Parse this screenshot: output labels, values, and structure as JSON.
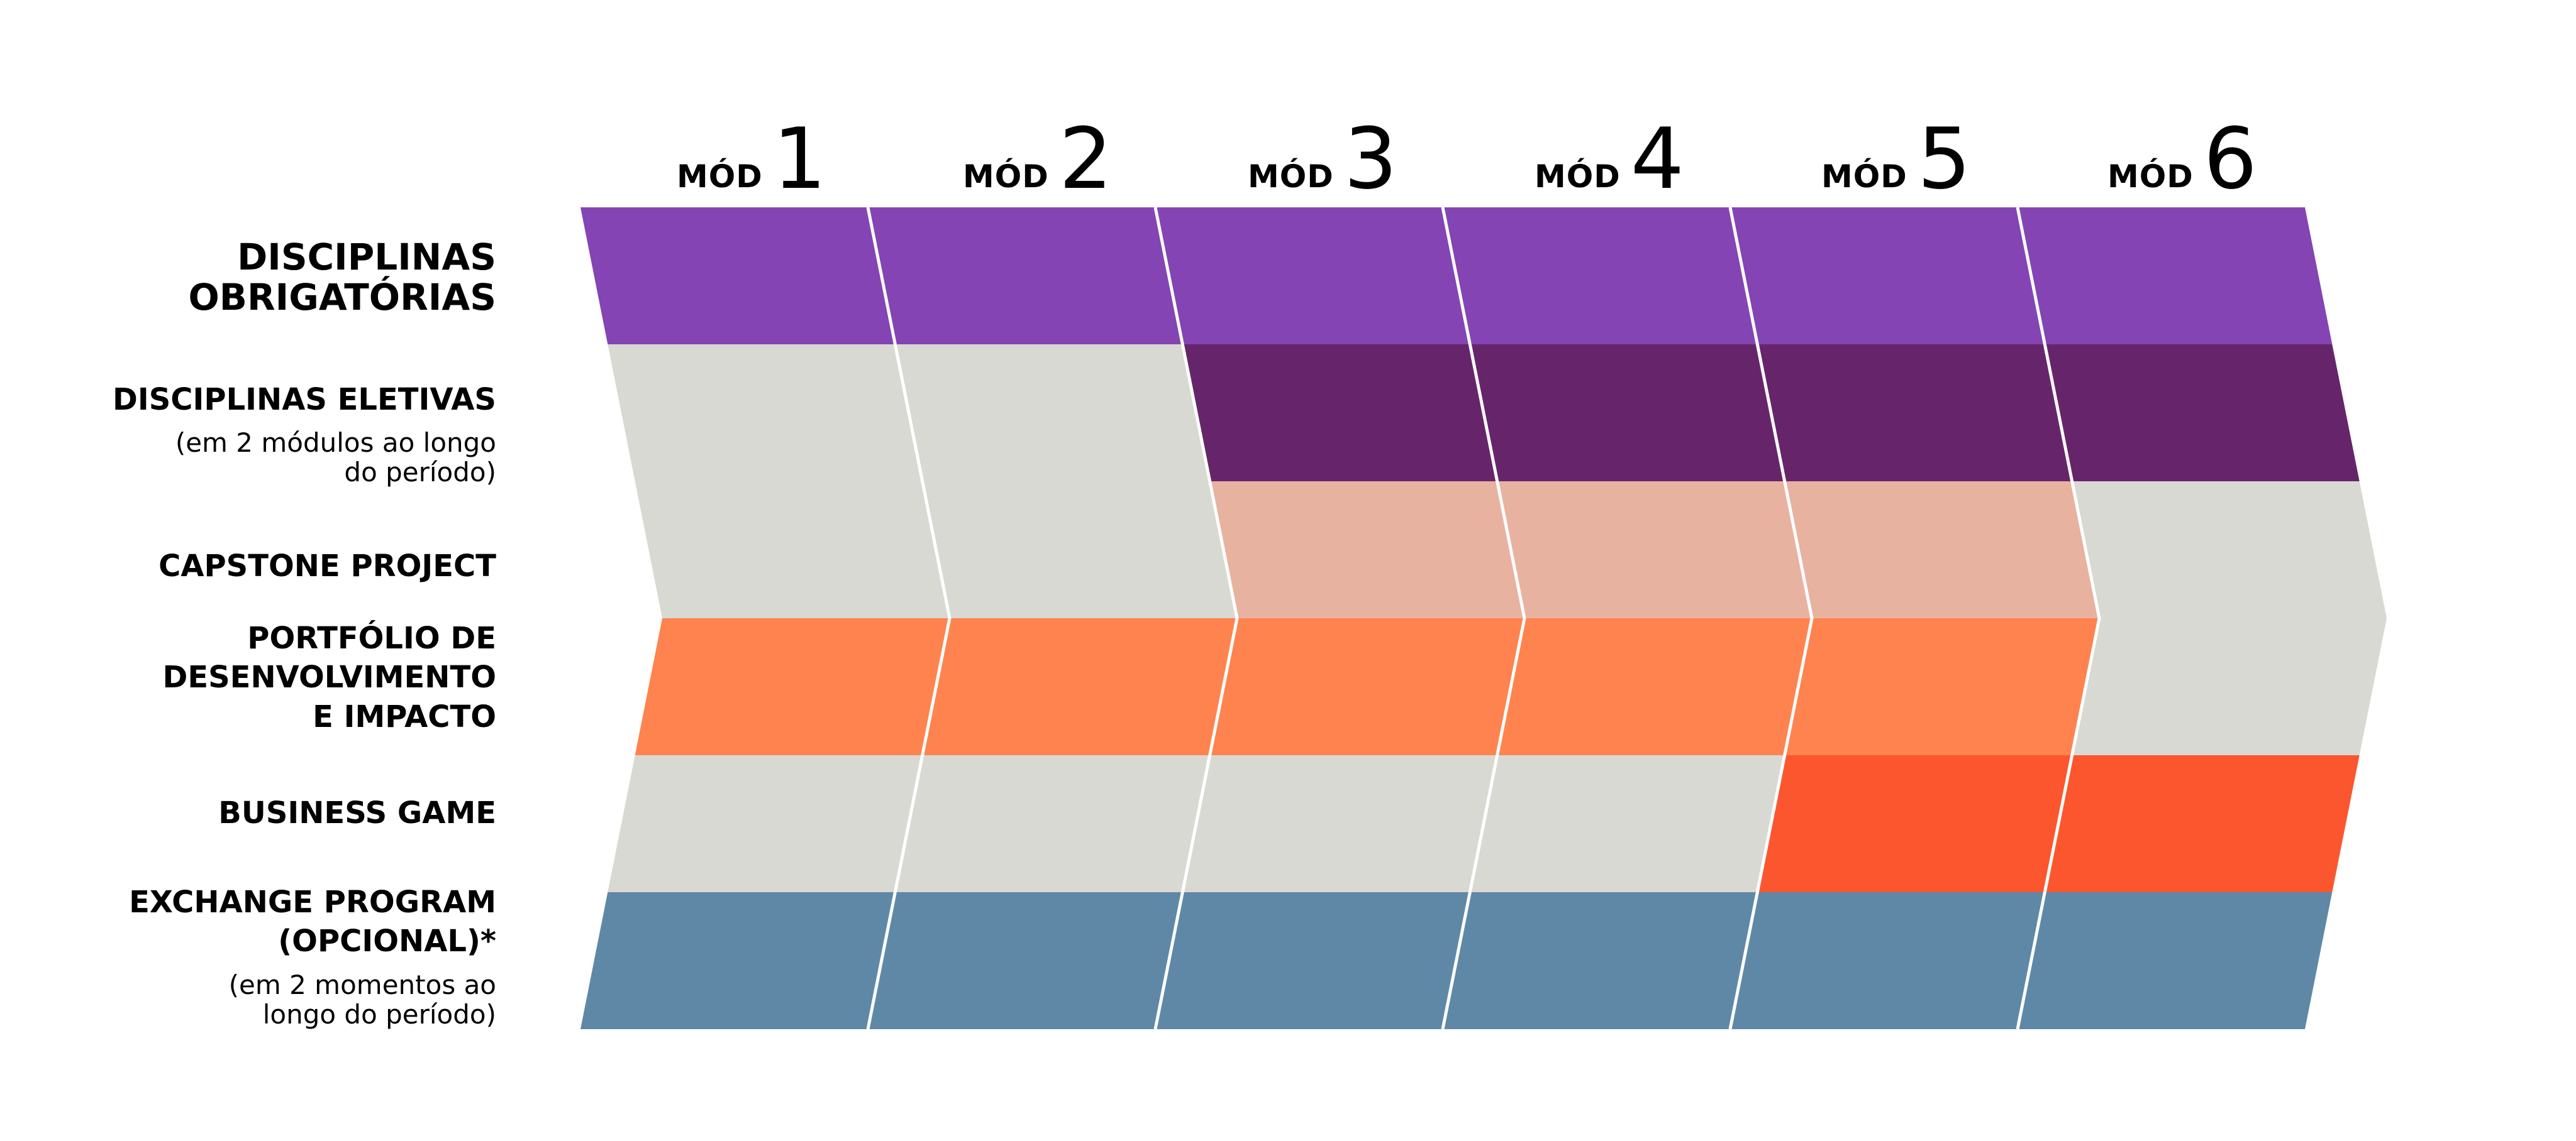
{
  "modules": [
    {
      "prefix": "MÓD",
      "number": "1"
    },
    {
      "prefix": "MÓD",
      "number": "2"
    },
    {
      "prefix": "MÓD",
      "number": "3"
    },
    {
      "prefix": "MÓD",
      "number": "4"
    },
    {
      "prefix": "MÓD",
      "number": "5"
    },
    {
      "prefix": "MÓD",
      "number": "6"
    }
  ],
  "rows": [
    {
      "title_lines": [
        "DISCIPLINAS",
        "OBRIGATÓRIAS"
      ],
      "note_lines": []
    },
    {
      "title_lines": [
        "DISCIPLINAS ELETIVAS"
      ],
      "note_lines": [
        "(em 2 módulos ao longo",
        "do período)"
      ]
    },
    {
      "title_lines": [
        "CAPSTONE PROJECT"
      ],
      "note_lines": []
    },
    {
      "title_lines": [
        "PORTFÓLIO DE",
        "DESENVOLVIMENTO",
        "E IMPACTO"
      ],
      "note_lines": []
    },
    {
      "title_lines": [
        "BUSINESS GAME"
      ],
      "note_lines": []
    },
    {
      "title_lines": [
        "EXCHANGE PROGRAM",
        "(OPCIONAL)*"
      ],
      "note_lines": [
        "(em 2 momentos ao",
        "longo do período)"
      ]
    }
  ],
  "colors": {
    "inactive": "#d9d9d3",
    "separator": "#ffffff",
    "disciplinas_obrigatorias": "#8444b3",
    "disciplinas_eletivas": "#66256b",
    "capstone_project": "#e8b2a0",
    "portfolio": "#ff834e",
    "business_game": "#fc562e",
    "exchange_program": "#5e88a6"
  },
  "grid": {
    "color_keys": [
      [
        "disciplinas_obrigatorias",
        "disciplinas_obrigatorias",
        "disciplinas_obrigatorias",
        "disciplinas_obrigatorias",
        "disciplinas_obrigatorias",
        "disciplinas_obrigatorias"
      ],
      [
        "inactive",
        "inactive",
        "disciplinas_eletivas",
        "disciplinas_eletivas",
        "disciplinas_eletivas",
        "disciplinas_eletivas"
      ],
      [
        "inactive",
        "inactive",
        "capstone_project",
        "capstone_project",
        "capstone_project",
        "inactive"
      ],
      [
        "portfolio",
        "portfolio",
        "portfolio",
        "portfolio",
        "portfolio",
        "inactive"
      ],
      [
        "inactive",
        "inactive",
        "inactive",
        "inactive",
        "business_game",
        "business_game"
      ],
      [
        "exchange_program",
        "exchange_program",
        "exchange_program",
        "exchange_program",
        "exchange_program",
        "exchange_program"
      ]
    ]
  }
}
